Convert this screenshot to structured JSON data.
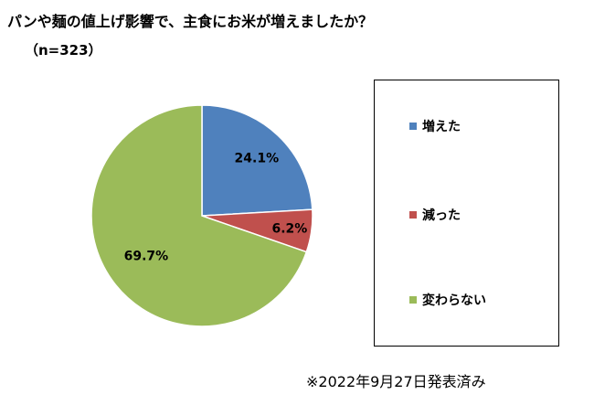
{
  "chart_data": {
    "type": "pie",
    "title": "パンや麺の値上げ影響で、主食にお米が増えましたか？",
    "subtitle": "（n=323）",
    "categories": [
      "増えた",
      "減った",
      "変わらない"
    ],
    "values": [
      24.1,
      6.2,
      69.7
    ],
    "data_labels": [
      "24.1%",
      "6.2%",
      "69.7%"
    ],
    "colors": [
      "#4F81BD",
      "#C0504D",
      "#9BBB59"
    ],
    "legend_placement": "right",
    "start_angle": "12 o'clock",
    "direction": "clockwise"
  },
  "note": "※2022年9月27日発表済み"
}
